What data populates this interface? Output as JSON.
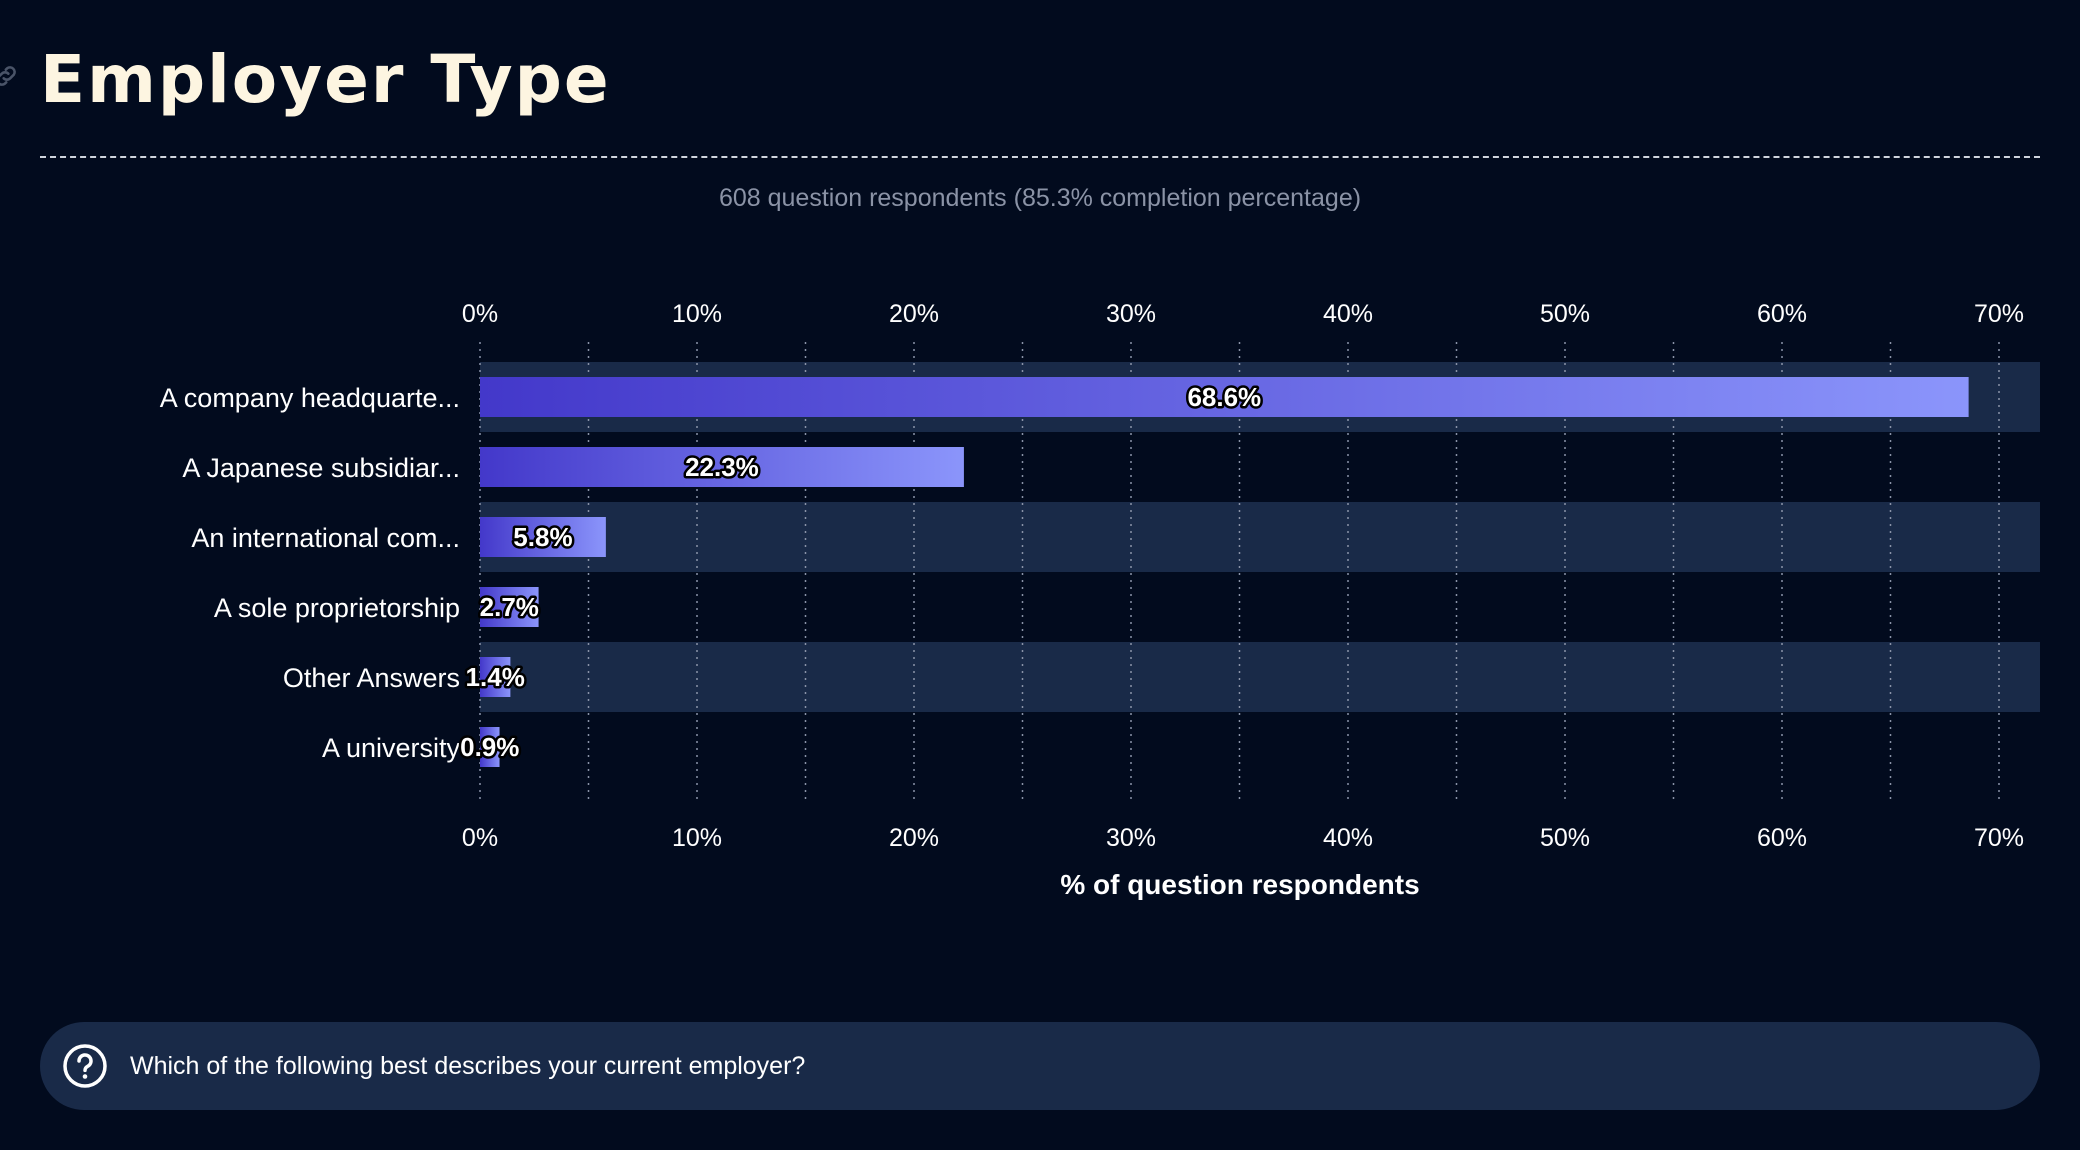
{
  "header": {
    "title": "Employer Type",
    "subtitle": "608 question respondents (85.3% completion percentage)",
    "link_icon": "link-icon"
  },
  "chart_data": {
    "type": "bar",
    "orientation": "horizontal",
    "categories": [
      "A company headquarte...",
      "A Japanese subsidiar...",
      "An international com...",
      "A sole proprietorship",
      "Other Answers",
      "A university"
    ],
    "values": [
      68.6,
      22.3,
      5.8,
      2.7,
      1.4,
      0.9
    ],
    "data_labels": [
      "68.6%",
      "22.3%",
      "5.8%",
      "2.7%",
      "1.4%",
      "0.9%"
    ],
    "xlim": [
      0,
      72
    ],
    "x_ticks": [
      "0%",
      "10%",
      "20%",
      "30%",
      "40%",
      "50%",
      "60%",
      "70%"
    ],
    "xlabel": "% of question respondents",
    "grid": "vertical dotted lines",
    "colors": {
      "bar_start": "#4338ca",
      "bar_end": "#8b95fb",
      "band": "#192a48",
      "background": "#020b1e"
    }
  },
  "footer": {
    "question_icon": "question-circle-icon",
    "question_text": "Which of the following best describes your current employer?"
  }
}
